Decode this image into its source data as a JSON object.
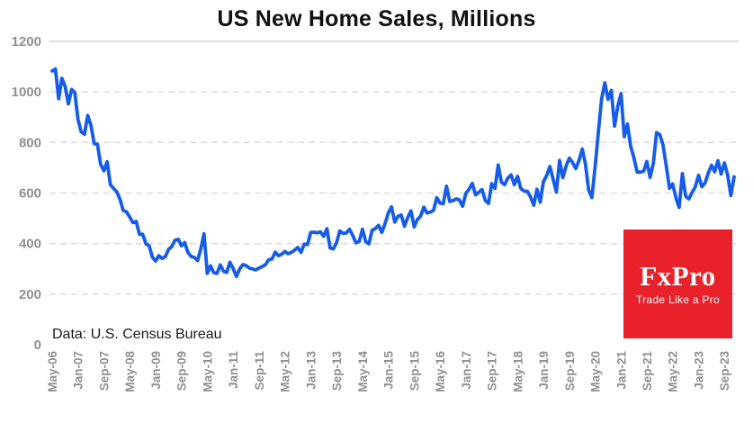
{
  "chart_data": {
    "type": "line",
    "title": "US New Home Sales, Millions",
    "source_note": "Data: U.S. Census Bureau",
    "legend_position": "none",
    "grid": "horizontal-dashed, top boundary line solid",
    "line_color": "#155CE8",
    "grid_color": "#D9D9D9",
    "top_line_color": "#C9C9C9",
    "axis_label_color": "#8F8F8F",
    "ylim": [
      0,
      1200
    ],
    "y_ticks": [
      0,
      200,
      400,
      600,
      800,
      1000,
      1200
    ],
    "x_start": "May-06",
    "x_end": "Dec-23",
    "x_tick_every_months": 8,
    "x_tick_labels": [
      "May-06",
      "Jan-07",
      "Sep-07",
      "May-08",
      "Jan-09",
      "Sep-09",
      "May-10",
      "Jan-11",
      "Sep-11",
      "May-12",
      "Jan-13",
      "Sep-13",
      "May-14",
      "Jan-15",
      "Sep-15",
      "May-16",
      "Jan-17",
      "Sep-17",
      "May-18",
      "Jan-19",
      "Sep-19",
      "May-20",
      "Jan-21",
      "Sep-21",
      "May-22",
      "Jan-23",
      "Sep-23"
    ],
    "values": [
      1083,
      1091,
      973,
      1054,
      1022,
      953,
      1010,
      998,
      891,
      842,
      833,
      907,
      868,
      795,
      793,
      713,
      688,
      724,
      633,
      618,
      605,
      575,
      531,
      526,
      505,
      483,
      488,
      437,
      437,
      399,
      391,
      346,
      331,
      352,
      341,
      348,
      377,
      388,
      413,
      417,
      391,
      404,
      365,
      349,
      345,
      333,
      380,
      439,
      282,
      312,
      285,
      282,
      316,
      291,
      286,
      326,
      301,
      270,
      300,
      317,
      313,
      303,
      300,
      296,
      303,
      309,
      317,
      336,
      339,
      366,
      352,
      358,
      369,
      360,
      365,
      374,
      385,
      365,
      398,
      396,
      444,
      445,
      443,
      446,
      429,
      459,
      383,
      379,
      403,
      450,
      440,
      442,
      457,
      432,
      403,
      408,
      457,
      408,
      399,
      453,
      459,
      472,
      444,
      479,
      521,
      545,
      485,
      508,
      513,
      469,
      503,
      529,
      466,
      495,
      508,
      544,
      521,
      525,
      531,
      582,
      560,
      558,
      627,
      567,
      570,
      577,
      573,
      548,
      599,
      615,
      638,
      593,
      603,
      614,
      571,
      559,
      637,
      618,
      711,
      643,
      633,
      659,
      672,
      633,
      666,
      618,
      608,
      607,
      585,
      552,
      615,
      564,
      644,
      669,
      705,
      656,
      604,
      729,
      661,
      706,
      738,
      721,
      697,
      729,
      774,
      716,
      612,
      582,
      704,
      840,
      972,
      1036,
      971,
      1006,
      865,
      943,
      993,
      823,
      873,
      785,
      740,
      683,
      683,
      686,
      725,
      662,
      717,
      839,
      831,
      790,
      707,
      619,
      636,
      582,
      543,
      677,
      588,
      577,
      602,
      625,
      670,
      625,
      640,
      679,
      710,
      684,
      728,
      675,
      719,
      672,
      590,
      664
    ]
  },
  "logo": {
    "name": "FxPro",
    "tagline": "Trade Like a Pro",
    "background_color": "#E8212B"
  }
}
